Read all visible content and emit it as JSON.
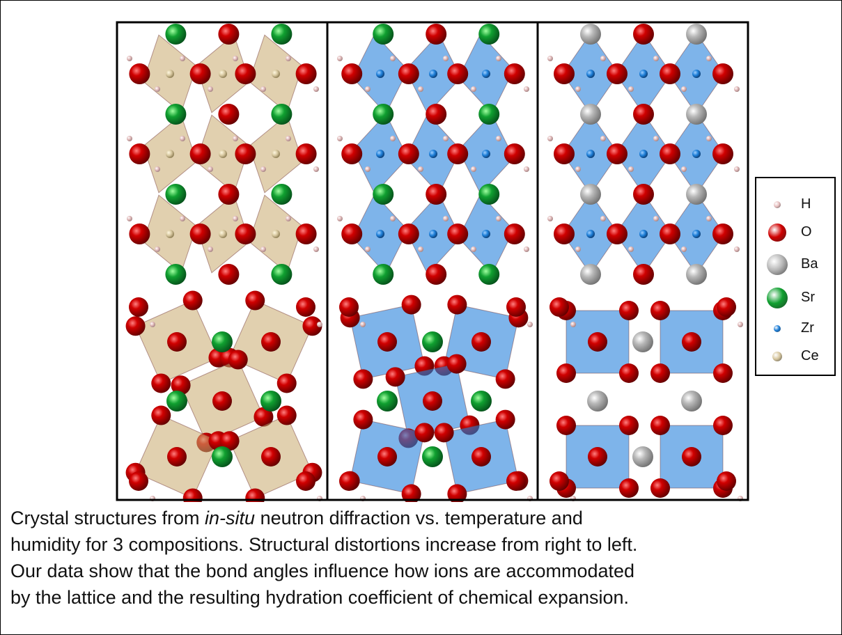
{
  "legend": {
    "items": [
      {
        "label": "H",
        "color": "#e8c0c0"
      },
      {
        "label": "O",
        "color": "#d00000"
      },
      {
        "label": "Ba",
        "color": "#b8b8b8"
      },
      {
        "label": "Sr",
        "color": "#10a030"
      },
      {
        "label": "Zr",
        "color": "#1e7fd8"
      },
      {
        "label": "Ce",
        "color": "#d8c8a0"
      }
    ]
  },
  "caption": {
    "lines": [
      [
        "Crystal structures from ",
        "in-situ",
        " neutron diffraction vs. temperature and"
      ],
      [
        "humidity for 3 compositions. Structural distortions increase from right to left."
      ],
      [
        "Our data show that the bond angles influence how ions are accommodated"
      ],
      [
        "by the lattice and the resulting hydration coefficient of chemical expansion."
      ]
    ]
  }
}
